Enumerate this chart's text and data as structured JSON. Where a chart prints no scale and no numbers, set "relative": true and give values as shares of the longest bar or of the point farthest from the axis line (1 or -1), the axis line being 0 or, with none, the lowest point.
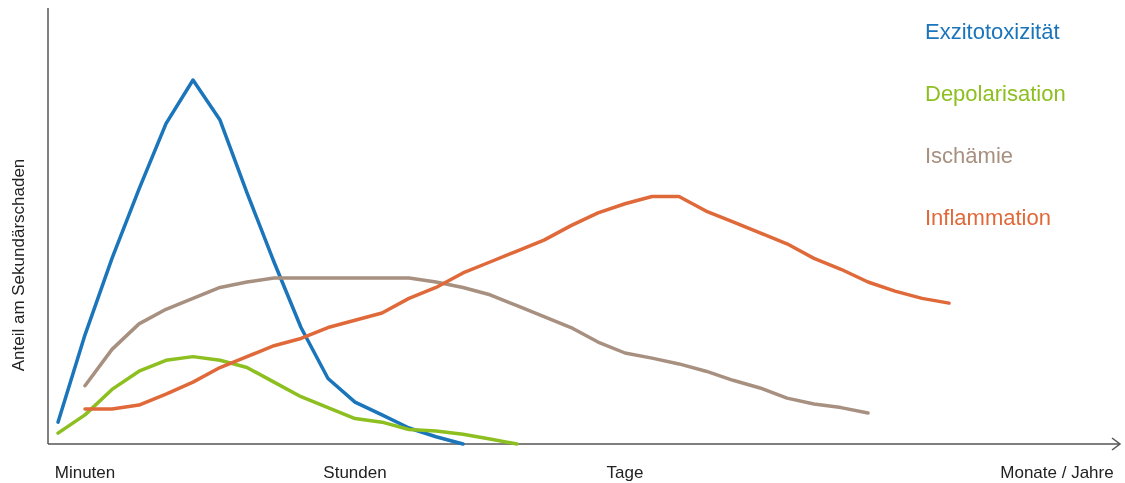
{
  "chart_data": {
    "type": "line",
    "relative": true,
    "ylabel": "Anteil am Sekundärschaden",
    "legend": "top right",
    "categories": [
      null,
      "Minuten",
      null,
      null,
      null,
      null,
      null,
      null,
      null,
      null,
      null,
      "Stunden",
      null,
      null,
      null,
      null,
      null,
      null,
      null,
      null,
      null,
      "Tage",
      null,
      null,
      null,
      null,
      null,
      null,
      null,
      null,
      null,
      null,
      null,
      null,
      null,
      null,
      null,
      "Monate / Jahre",
      null,
      null
    ],
    "series": [
      {
        "name": "Exzitotoxizität",
        "color": "#1a75bb",
        "values": [
          0.06,
          0.3,
          0.51,
          0.7,
          0.88,
          1.0,
          0.89,
          0.69,
          0.5,
          0.32,
          0.18,
          0.115,
          0.08,
          0.044,
          0.02,
          0,
          null,
          null,
          null,
          null,
          null,
          null,
          null,
          null,
          null,
          null,
          null,
          null,
          null,
          null,
          null,
          null,
          null,
          null,
          null,
          null,
          null,
          null,
          null,
          null
        ]
      },
      {
        "name": "Depolarisation",
        "color": "#8cbf1f",
        "values": [
          0.03,
          0.08,
          0.15,
          0.2,
          0.23,
          0.24,
          0.23,
          0.21,
          0.17,
          0.13,
          0.1,
          0.07,
          0.06,
          0.04,
          0.036,
          0.027,
          0.014,
          0,
          null,
          null,
          null,
          null,
          null,
          null,
          null,
          null,
          null,
          null,
          null,
          null,
          null,
          null,
          null,
          null,
          null,
          null,
          null,
          null,
          null,
          null
        ]
      },
      {
        "name": "Ischämie",
        "color": "#a89080",
        "values": [
          null,
          0.16,
          0.26,
          0.33,
          0.37,
          0.4,
          0.43,
          0.445,
          0.456,
          0.456,
          0.456,
          0.456,
          0.456,
          0.456,
          0.445,
          0.43,
          0.41,
          0.38,
          0.35,
          0.32,
          0.28,
          0.25,
          0.236,
          0.22,
          0.2,
          0.175,
          0.154,
          0.126,
          0.11,
          0.1,
          0.085,
          null,
          null,
          null,
          null,
          null,
          null,
          null,
          null,
          null
        ]
      },
      {
        "name": "Inflammation",
        "color": "#e0693a",
        "values": [
          null,
          0.096,
          0.096,
          0.107,
          0.137,
          0.17,
          0.21,
          0.24,
          0.27,
          0.29,
          0.32,
          0.34,
          0.36,
          0.4,
          0.43,
          0.47,
          0.5,
          0.53,
          0.56,
          0.6,
          0.635,
          0.66,
          0.68,
          0.68,
          0.64,
          0.61,
          0.58,
          0.55,
          0.51,
          0.48,
          0.445,
          0.42,
          0.4,
          0.387,
          null,
          null,
          null,
          null,
          null,
          null
        ]
      }
    ]
  }
}
